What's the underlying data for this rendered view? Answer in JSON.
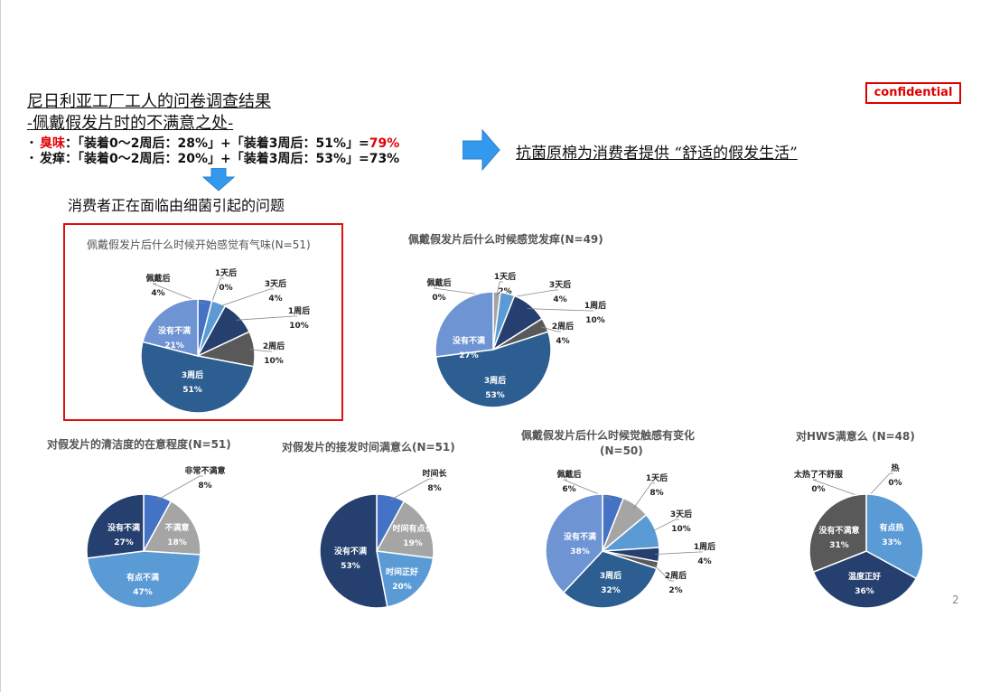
{
  "header": {
    "title_line1": "尼日利亚工厂工人的问卷调查结果",
    "title_line2": "-佩戴假发片时的不满意之处-",
    "bullet1": {
      "prefix": "・",
      "label": "臭味",
      "colon": "：",
      "text": "「装着0～2周后：28%」+「装着3周后：51%」=",
      "result": "79%"
    },
    "bullet2": {
      "prefix": "・",
      "label": "发痒",
      "colon": "：",
      "text": "「装着0～2周后：20%」+「装着3周后：53%」=73%"
    },
    "confidential": "confidential",
    "message": "抗菌原棉为消费者提供 “舒适的假发生活”",
    "subhead": "消费者正在面临由细菌引起的问题",
    "page_number": "2"
  },
  "colors": {
    "accent_red": "#e00000",
    "arrow_blue": "#3399ee",
    "dark_navy": "#25406f",
    "mid_blue": "#2d5e91",
    "light_blue": "#5b9bd5",
    "gray": "#9e9e9e",
    "dark_gray": "#595959"
  },
  "chart_data": [
    {
      "type": "pie",
      "title": "佩戴假发片后什么时候开始感觉有气味(N=51)",
      "slices": [
        {
          "label": "佩戴后",
          "value": 4,
          "display": "4%",
          "color": "#4472c4"
        },
        {
          "label": "1天后",
          "value": 0,
          "display": "0%",
          "color": "#a5a5a5"
        },
        {
          "label": "3天后",
          "value": 4,
          "display": "4%",
          "color": "#5b9bd5"
        },
        {
          "label": "1周后",
          "value": 10,
          "display": "10%",
          "color": "#25406f"
        },
        {
          "label": "2周后",
          "value": 10,
          "display": "10%",
          "color": "#595959"
        },
        {
          "label": "3周后",
          "value": 51,
          "display": "51%",
          "color": "#2d5e91"
        },
        {
          "label": "没有不满",
          "value": 21,
          "display": "21%",
          "color": "#6f94d3"
        }
      ]
    },
    {
      "type": "pie",
      "title": "佩戴假发片后什么时候感觉发痒(N=49)",
      "slices": [
        {
          "label": "佩戴后",
          "value": 0,
          "display": "0%",
          "color": "#4472c4"
        },
        {
          "label": "1天后",
          "value": 2,
          "display": "2%",
          "color": "#a5a5a5"
        },
        {
          "label": "3天后",
          "value": 4,
          "display": "4%",
          "color": "#5b9bd5"
        },
        {
          "label": "1周后",
          "value": 10,
          "display": "10%",
          "color": "#25406f"
        },
        {
          "label": "2周后",
          "value": 4,
          "display": "4%",
          "color": "#595959"
        },
        {
          "label": "3周后",
          "value": 53,
          "display": "53%",
          "color": "#2d5e91"
        },
        {
          "label": "没有不满",
          "value": 27,
          "display": "27%",
          "color": "#6f94d3"
        }
      ]
    },
    {
      "type": "pie",
      "title": "对假发片的清洁度的在意程度(N=51)",
      "slices": [
        {
          "label": "非常不满意",
          "value": 8,
          "display": "8%",
          "color": "#4472c4"
        },
        {
          "label": "不满意",
          "value": 18,
          "display": "18%",
          "color": "#a5a5a5"
        },
        {
          "label": "有点不满",
          "value": 47,
          "display": "47%",
          "color": "#5b9bd5"
        },
        {
          "label": "没有不满",
          "value": 27,
          "display": "27%",
          "color": "#25406f"
        }
      ]
    },
    {
      "type": "pie",
      "title": "对假发片的接发时间满意么(N=51)",
      "slices": [
        {
          "label": "时间长",
          "value": 8,
          "display": "8%",
          "color": "#4472c4"
        },
        {
          "label": "时间有点长",
          "value": 19,
          "display": "19%",
          "color": "#a5a5a5"
        },
        {
          "label": "时间正好",
          "value": 20,
          "display": "20%",
          "color": "#5b9bd5"
        },
        {
          "label": "没有不满",
          "value": 53,
          "display": "53%",
          "color": "#25406f"
        }
      ]
    },
    {
      "type": "pie",
      "title": "佩戴假发片后什么时候觉触感有变化",
      "title2": "(N=50)",
      "slices": [
        {
          "label": "佩戴后",
          "value": 6,
          "display": "6%",
          "color": "#4472c4"
        },
        {
          "label": "1天后",
          "value": 8,
          "display": "8%",
          "color": "#a5a5a5"
        },
        {
          "label": "3天后",
          "value": 10,
          "display": "10%",
          "color": "#5b9bd5"
        },
        {
          "label": "1周后",
          "value": 4,
          "display": "4%",
          "color": "#25406f"
        },
        {
          "label": "2周后",
          "value": 2,
          "display": "2%",
          "color": "#595959"
        },
        {
          "label": "3周后",
          "value": 32,
          "display": "32%",
          "color": "#2d5e91"
        },
        {
          "label": "没有不满",
          "value": 38,
          "display": "38%",
          "color": "#6f94d3"
        }
      ]
    },
    {
      "type": "pie",
      "title": "对HWS满意么 (N=48)",
      "slices": [
        {
          "label": "太热了不舒服",
          "value": 0,
          "display": "0%",
          "color": "#4472c4"
        },
        {
          "label": "热",
          "value": 0,
          "display": "0%",
          "color": "#a5a5a5"
        },
        {
          "label": "有点热",
          "value": 33,
          "display": "33%",
          "color": "#5b9bd5"
        },
        {
          "label": "温度正好",
          "value": 36,
          "display": "36%",
          "color": "#25406f"
        },
        {
          "label": "没有不满意",
          "value": 31,
          "display": "31%",
          "color": "#595959"
        }
      ]
    }
  ]
}
